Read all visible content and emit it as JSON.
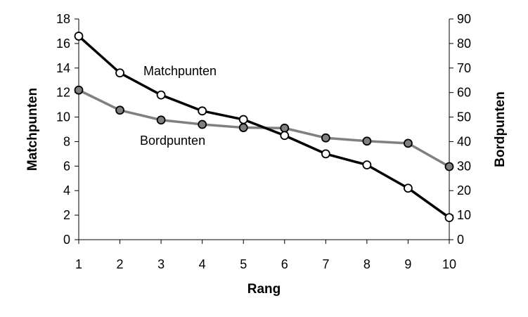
{
  "chart_data": {
    "type": "line",
    "x": [
      1,
      2,
      3,
      4,
      5,
      6,
      7,
      8,
      9,
      10
    ],
    "xlabel": "Rang",
    "ylabel_left": "Matchpunten",
    "ylabel_right": "Bordpunten",
    "ylim_left": [
      0,
      18
    ],
    "ylim_right": [
      0,
      90
    ],
    "yticks_left": [
      0,
      2,
      4,
      6,
      8,
      10,
      12,
      14,
      16,
      18
    ],
    "yticks_right": [
      0,
      10,
      20,
      30,
      40,
      50,
      60,
      70,
      80,
      90
    ],
    "xticks": [
      1,
      2,
      3,
      4,
      5,
      6,
      7,
      8,
      9,
      10
    ],
    "grid": false,
    "legend": "none",
    "series": [
      {
        "name": "Matchpunten",
        "axis": "left",
        "color": "#000000",
        "marker_fill": "#ffffff",
        "values": [
          16.6,
          13.6,
          11.8,
          10.5,
          9.8,
          8.5,
          7.0,
          6.1,
          4.2,
          1.8
        ]
      },
      {
        "name": "Bordpunten",
        "axis": "right",
        "color": "#808080",
        "marker_fill": "#808080",
        "values": [
          61,
          52.8,
          48.8,
          47,
          45.7,
          45.5,
          41.5,
          40.2,
          39.3,
          29.8
        ]
      }
    ]
  }
}
